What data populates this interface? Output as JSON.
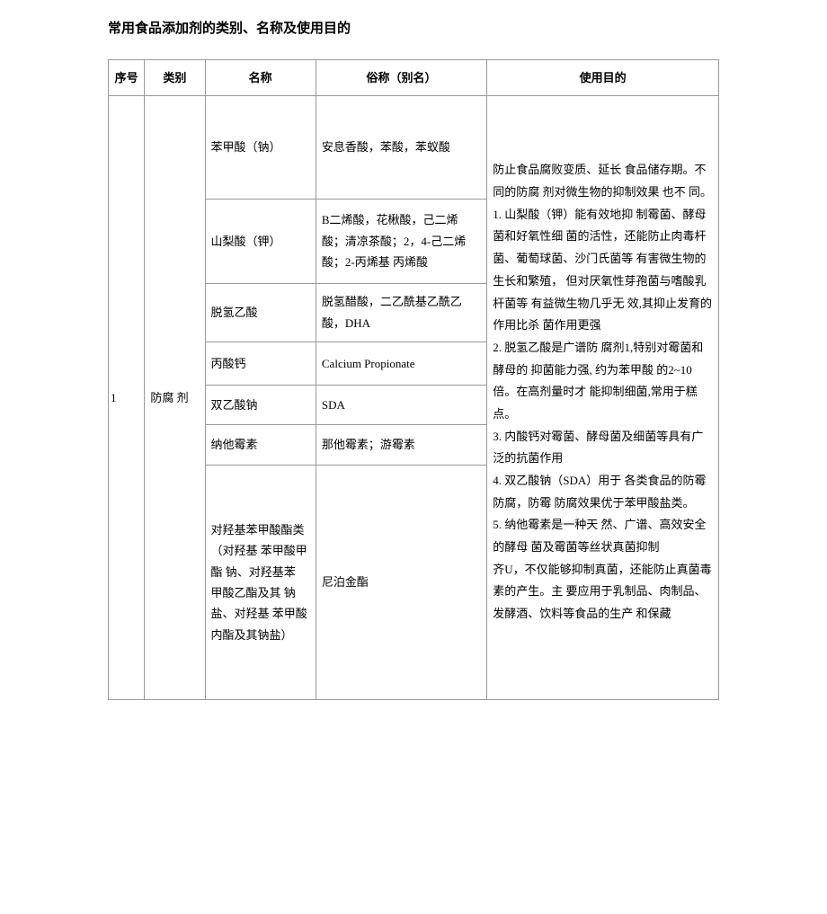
{
  "title": "常用食品添加剂的类别、名称及使用目的",
  "headers": {
    "seq": "序号",
    "category": "类别",
    "name": "名称",
    "alias": "俗称（别名）",
    "purpose": "使用目的"
  },
  "row": {
    "seq": "1",
    "category": "防腐  剂",
    "items": [
      {
        "name": "苯甲酸（钠）",
        "alias": "安息香酸，苯酸，苯蚁酸"
      },
      {
        "name": "山梨酸（钾）",
        "alias": "B二烯酸，花楸酸，己二烯酸；清凉茶酸；2，4-己二烯酸；2-丙烯基 丙烯酸"
      },
      {
        "name": "脱氢乙酸",
        "alias": "脱氢醋酸，二乙酰基乙酰乙酸，DHA"
      },
      {
        "name": "丙酸钙",
        "alias": "Calcium Propionate"
      },
      {
        "name": "双乙酸钠",
        "alias": "SDA"
      },
      {
        "name": "纳他霉素",
        "alias": "那他霉素；游霉素"
      },
      {
        "name": " 对羟基苯甲酸酯类（对羟基 苯甲酸甲酯 钠、对羟基苯 甲酸乙酯及其 钠盐、对羟基 苯甲酸内酯及其钠盐）",
        "alias": "尼泊金酯"
      }
    ],
    "purpose_lines": [
      "防止食品腐败变质、延长 食品储存期。不同的防腐 剂对微生物的抑制效果  也不  同。",
      "1. 山梨酸（钾）能有效地抑 制霉菌、酵母菌和好氧性细  菌的活性，还能防止肉毒杆  菌、葡萄球菌、沙门氏菌等 有害微生物的生长和繁殖，    但对厌氧性芽孢菌与嗜酸乳   杆菌等 有益微生物几乎无  效,其抑止发育的作用比杀  菌作用更强",
      "2. 脱氢乙酸是广谱防  腐剂1,特别对霉菌和酵母的   抑菌能力强, 约为苯甲酸 的2~10倍。在高剂量时才 能抑制细菌,常用于糕点。",
      "3. 内酸钙对霉菌、酵母菌及细菌等具有广泛的抗菌作用",
      "4. 双乙酸钠（SDA）用于   各类食品的防霉防腐，防霉 防腐效果优于苯甲酸盐类。",
      "5. 纳他霉素是一种天   然、广谱、高效安全的酵母 菌及霉菌等丝状真菌抑制",
      "齐U，不仅能够抑制真菌，还能防止真菌毒素的产生。主 要应用于乳制品、肉制品、 发酵酒、饮料等食品的生产 和保藏"
    ]
  },
  "styles": {
    "cell_paddings_v": [
      45,
      35,
      20,
      12,
      10,
      10,
      60
    ]
  }
}
